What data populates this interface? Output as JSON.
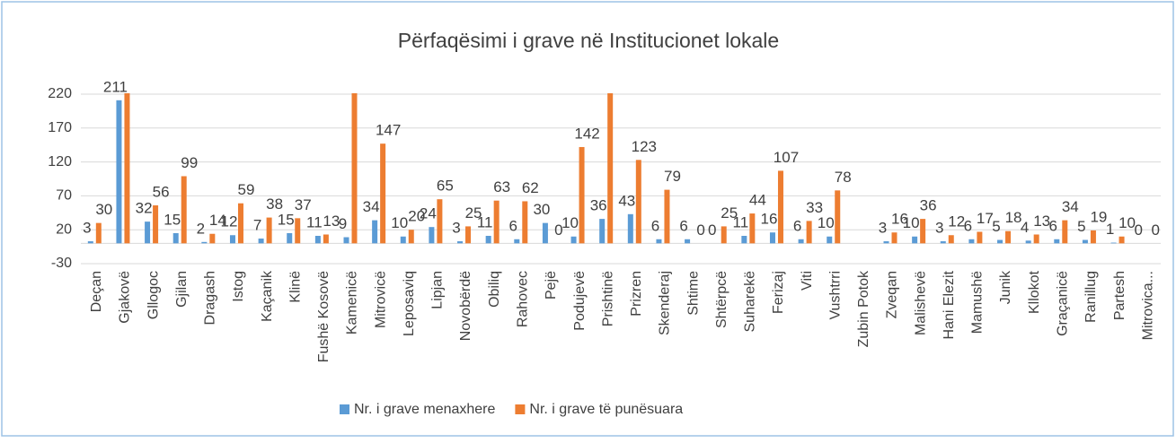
{
  "chart_data": {
    "type": "bar",
    "title": "Përfaqësimi i grave në Institucionet lokale",
    "categories": [
      "Deçan",
      "Gjakovë",
      "Gllogoc",
      "Gjilan",
      "Dragash",
      "Istog",
      "Kaçanik",
      "Klinë",
      "Fushë Kosovë",
      "Kamenicë",
      "Mitrovicë",
      "Leposaviq",
      "Lipjan",
      "Novobërdë",
      "Obiliq",
      "Rahovec",
      "Pejë",
      "Podujevë",
      "Prishtinë",
      "Prizren",
      "Skenderaj",
      "Shtime",
      "Shtërpcë",
      "Suharekë",
      "Ferizaj",
      "Viti",
      "Vushtrri",
      "Zubin Potok",
      "Zveqan",
      "Malishevë",
      "Hani Elezit",
      "Mamushë",
      "Junik",
      "Kllokot",
      "Graçanicë",
      "Ranillug",
      "Partesh",
      "Mitrovica..."
    ],
    "series": [
      {
        "name": "Nr. i grave menaxhere",
        "color": "#5b9bd5",
        "values": [
          3,
          211,
          32,
          15,
          2,
          12,
          7,
          15,
          11,
          9,
          34,
          10,
          24,
          3,
          11,
          6,
          30,
          10,
          36,
          43,
          6,
          6,
          0,
          11,
          16,
          6,
          10,
          null,
          3,
          10,
          3,
          6,
          5,
          4,
          6,
          5,
          1,
          0
        ],
        "value_labels": [
          "3",
          "211",
          "32",
          "15",
          "2",
          "12",
          "7",
          "15",
          "11",
          "9",
          "34",
          "10",
          "24",
          "3",
          "11",
          "6",
          "30",
          "10",
          "36",
          "43",
          "6",
          "6",
          "0",
          "11",
          "16",
          "6",
          "10",
          null,
          "3",
          "10",
          "3",
          "6",
          "5",
          "4",
          "6",
          "5",
          "1",
          "0"
        ]
      },
      {
        "name": "Nr. i grave të punësuara",
        "color": "#ed7d31",
        "values": [
          30,
          230,
          56,
          99,
          14,
          59,
          38,
          37,
          13,
          230,
          147,
          20,
          65,
          25,
          63,
          62,
          0,
          142,
          230,
          123,
          79,
          0,
          25,
          44,
          107,
          33,
          78,
          null,
          16,
          36,
          12,
          17,
          18,
          13,
          34,
          19,
          10,
          0
        ],
        "value_labels": [
          "30",
          null,
          "56",
          "99",
          "14",
          "59",
          "38",
          "37",
          "13",
          null,
          "147",
          "20",
          "65",
          "25",
          "63",
          "62",
          "0",
          "142",
          null,
          "123",
          "79",
          "0",
          "25",
          "44",
          "107",
          "33",
          "78",
          null,
          "16",
          "36",
          "12",
          "17",
          "18",
          "13",
          "34",
          "19",
          "10",
          "0"
        ]
      }
    ],
    "ylim": [
      -30,
      220
    ],
    "yticks": [
      -30,
      20,
      70,
      120,
      170,
      220
    ],
    "grid": true,
    "legend": "bottom"
  }
}
